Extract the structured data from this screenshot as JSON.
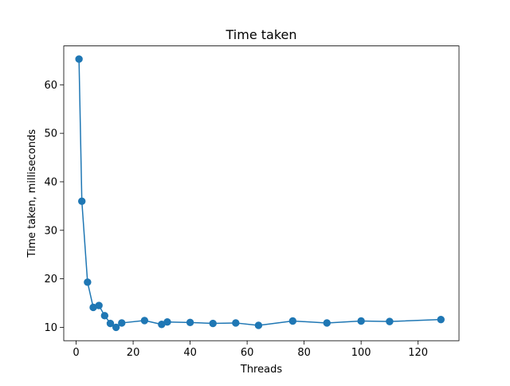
{
  "chart_data": {
    "type": "line",
    "title": "Time taken",
    "xlabel": "Threads",
    "ylabel": "Time taken, milliseconds",
    "xlim": [
      -4.35,
      134.35
    ],
    "ylim": [
      7.24,
      68.01
    ],
    "xticks": [
      0,
      20,
      40,
      60,
      80,
      100,
      120
    ],
    "yticks": [
      10,
      20,
      30,
      40,
      50,
      60
    ],
    "grid": false,
    "series": [
      {
        "color": "#1f77b4",
        "marker": "circle",
        "x": [
          1,
          2,
          4,
          6,
          8,
          10,
          12,
          14,
          16,
          24,
          30,
          32,
          40,
          48,
          56,
          64,
          76,
          88,
          100,
          110,
          128
        ],
        "y": [
          65.3,
          36.0,
          19.3,
          14.1,
          14.5,
          12.4,
          10.8,
          10.0,
          10.9,
          11.4,
          10.6,
          11.1,
          11.0,
          10.8,
          10.9,
          10.4,
          11.3,
          10.9,
          11.3,
          11.2,
          11.6
        ]
      }
    ]
  }
}
